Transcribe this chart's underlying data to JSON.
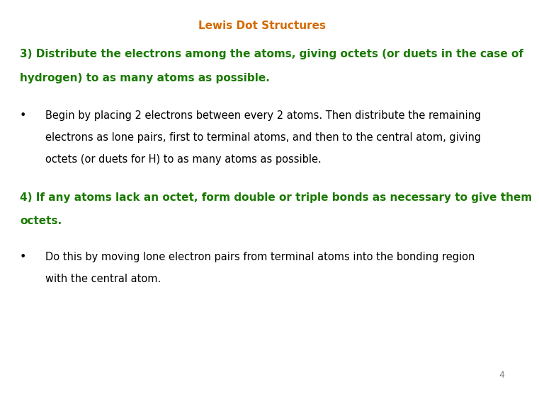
{
  "title": "Lewis Dot Structures",
  "title_color": "#D46A00",
  "title_fontsize": 11,
  "background_color": "#ffffff",
  "heading3_line1": "3) Distribute the electrons among the atoms, giving octets (or duets in the case of",
  "heading3_line2": "hydrogen) to as many atoms as possible.",
  "heading3_color": "#1A7A00",
  "heading3_fontsize": 11,
  "bullet1_line1": "Begin by placing 2 electrons between every 2 atoms. Then distribute the remaining",
  "bullet1_line2": "electrons as lone pairs, first to terminal atoms, and then to the central atom, giving",
  "bullet1_line3": "octets (or duets for H) to as many atoms as possible.",
  "bullet1_color": "#000000",
  "bullet1_fontsize": 10.5,
  "heading4_line1": "4) If any atoms lack an octet, form double or triple bonds as necessary to give them",
  "heading4_line2": "octets.",
  "heading4_color": "#1A7A00",
  "heading4_fontsize": 11,
  "bullet2_line1": "Do this by moving lone electron pairs from terminal atoms into the bonding region",
  "bullet2_line2": "with the central atom.",
  "bullet2_color": "#000000",
  "bullet2_fontsize": 10.5,
  "page_number": "4",
  "page_number_color": "#808080",
  "page_number_fontsize": 9
}
